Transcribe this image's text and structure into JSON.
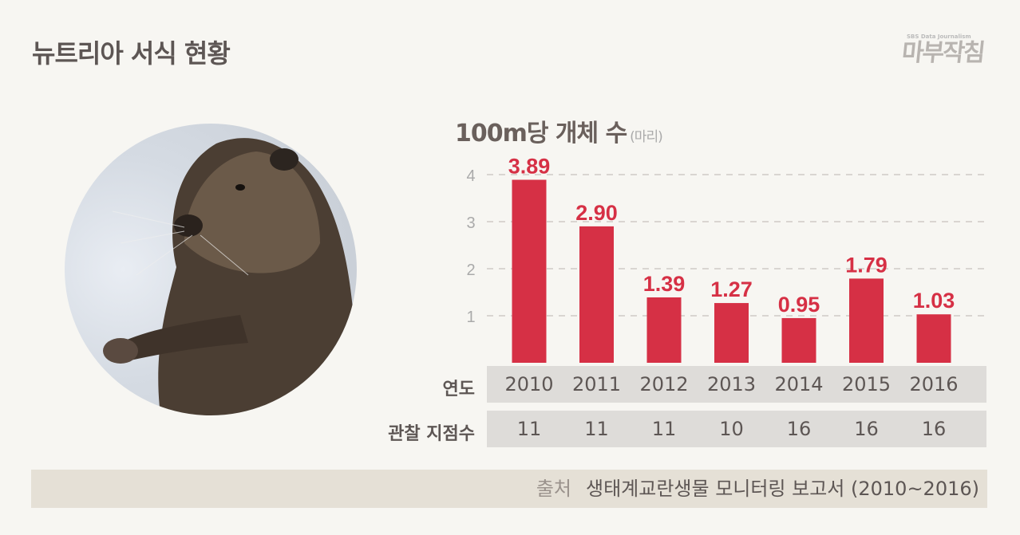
{
  "title": "뉴트리아 서식 현황",
  "logo": {
    "sub": "SBS Data Journalism",
    "name": "마부작침"
  },
  "chart_data": {
    "type": "bar",
    "title": "100m당 개체 수",
    "unit": "(마리)",
    "categories": [
      "2010",
      "2011",
      "2012",
      "2013",
      "2014",
      "2015",
      "2016"
    ],
    "values": [
      3.89,
      2.9,
      1.39,
      1.27,
      0.95,
      1.79,
      1.03
    ],
    "data_labels": [
      "3.89",
      "2.90",
      "1.39",
      "1.27",
      "0.95",
      "1.79",
      "1.03"
    ],
    "yticks": [
      "1",
      "2",
      "3",
      "4"
    ],
    "ylim": [
      0,
      4.4
    ],
    "grid": "dashed horizontal",
    "bar_color": "#d63045"
  },
  "table": {
    "year_label": "연도",
    "sites_label": "관찰 지점수",
    "sites": [
      "11",
      "11",
      "11",
      "10",
      "16",
      "16",
      "16"
    ]
  },
  "source": {
    "label": "출처",
    "text": "생태계교란생물 모니터링 보고서 (2010~2016)"
  }
}
